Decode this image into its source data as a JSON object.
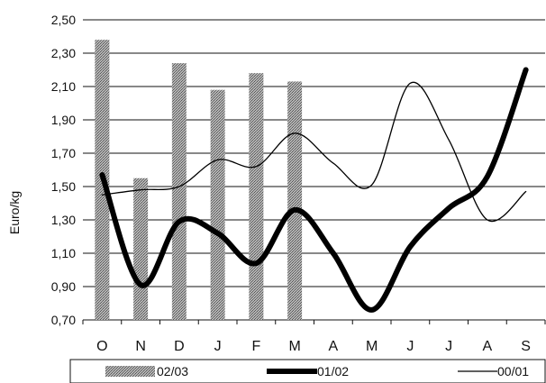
{
  "chart_data": {
    "type": "bar",
    "title": "",
    "xlabel": "",
    "ylabel": "Euro/kg",
    "ylim": [
      0.7,
      2.5
    ],
    "yticks": [
      "2,50",
      "2,30",
      "2,10",
      "1,90",
      "1,70",
      "1,50",
      "1,30",
      "1,10",
      "0,90",
      "0,70"
    ],
    "categories": [
      "O",
      "N",
      "D",
      "J",
      "F",
      "M",
      "A",
      "M",
      "J",
      "J",
      "A",
      "S"
    ],
    "grid": "horizontal",
    "legend_position": "bottom",
    "series": [
      {
        "name": "02/03",
        "kind": "bar",
        "values": [
          2.38,
          1.55,
          2.24,
          2.08,
          2.18,
          2.13,
          null,
          null,
          null,
          null,
          null,
          null
        ],
        "color": "#9a9a9a"
      },
      {
        "name": "01/02",
        "kind": "line",
        "style": "thick",
        "values": [
          1.57,
          0.91,
          1.29,
          1.22,
          1.04,
          1.36,
          1.1,
          0.76,
          1.14,
          1.37,
          1.56,
          2.2
        ],
        "color": "#000000"
      },
      {
        "name": "00/01",
        "kind": "line",
        "style": "thin",
        "values": [
          1.45,
          1.48,
          1.5,
          1.66,
          1.62,
          1.82,
          1.64,
          1.51,
          2.12,
          1.78,
          1.3,
          1.47
        ],
        "color": "#000000"
      }
    ]
  }
}
